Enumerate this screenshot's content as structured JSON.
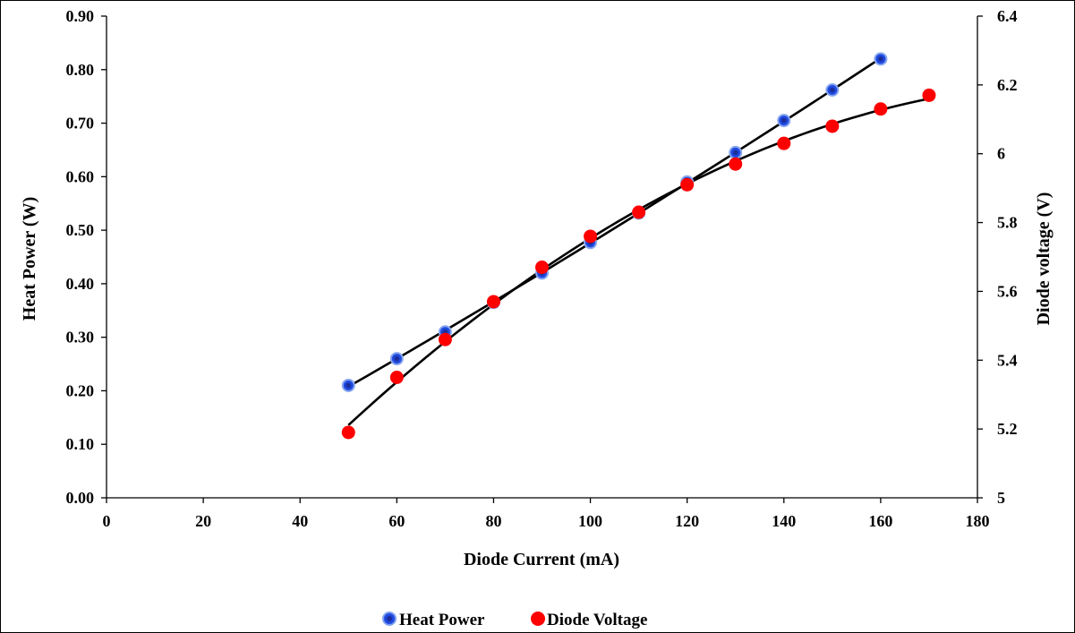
{
  "chart_data": {
    "type": "scatter",
    "xlabel": "Diode Current (mA)",
    "ylabel": "Heat Power (W)",
    "y2label": "Diode voltage (V)",
    "xlim": [
      0,
      180
    ],
    "ylim": [
      0,
      0.9
    ],
    "y2lim": [
      5,
      6.4
    ],
    "x_ticks": [
      0,
      20,
      40,
      60,
      80,
      100,
      120,
      140,
      160,
      180
    ],
    "y_ticks": [
      "0.00",
      "0.10",
      "0.20",
      "0.30",
      "0.40",
      "0.50",
      "0.60",
      "0.70",
      "0.80",
      "0.90"
    ],
    "y2_ticks": [
      "5",
      "5.2",
      "5.4",
      "5.6",
      "5.8",
      "6",
      "6.2",
      "6.4"
    ],
    "grid": false,
    "legend_position": "bottom",
    "series": [
      {
        "name": "Heat Power",
        "axis": "left",
        "color": "#1f49e0",
        "trendline": true,
        "x": [
          50,
          60,
          70,
          80,
          90,
          100,
          110,
          120,
          130,
          140,
          150,
          160
        ],
        "y": [
          0.21,
          0.26,
          0.31,
          0.365,
          0.42,
          0.477,
          0.532,
          0.59,
          0.645,
          0.705,
          0.762,
          0.82
        ]
      },
      {
        "name": "Diode Voltage",
        "axis": "right",
        "color": "#ff0000",
        "trendline": true,
        "x": [
          50,
          60,
          70,
          80,
          90,
          100,
          110,
          120,
          130,
          140,
          150,
          160,
          170
        ],
        "y": [
          5.19,
          5.35,
          5.46,
          5.57,
          5.67,
          5.76,
          5.83,
          5.91,
          5.97,
          6.03,
          6.08,
          6.13,
          6.17
        ]
      }
    ]
  }
}
